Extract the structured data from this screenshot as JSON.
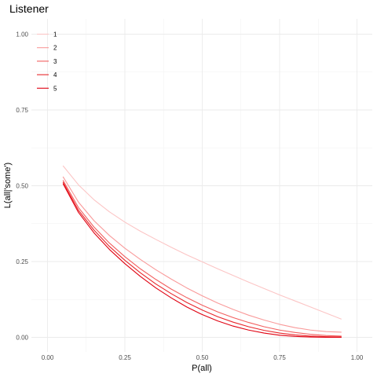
{
  "chart_data": {
    "type": "line",
    "title": "Listener",
    "xlabel": "P(all)",
    "ylabel": "L(all|'some')",
    "xlim": [
      0.0,
      1.0
    ],
    "ylim": [
      0.0,
      1.0
    ],
    "xticks": [
      0.0,
      0.25,
      0.5,
      0.75,
      1.0
    ],
    "xtick_labels": [
      "0.00",
      "0.25",
      "0.50",
      "0.75",
      "1.00"
    ],
    "yticks": [
      0.0,
      0.25,
      0.5,
      0.75,
      1.0
    ],
    "ytick_labels": [
      "0.00",
      "0.25",
      "0.50",
      "0.75",
      "1.00"
    ],
    "grid": true,
    "legend_position": "top-left",
    "x": [
      0.05,
      0.1,
      0.15,
      0.2,
      0.25,
      0.3,
      0.35,
      0.4,
      0.45,
      0.5,
      0.55,
      0.6,
      0.65,
      0.7,
      0.75,
      0.8,
      0.85,
      0.9,
      0.95
    ],
    "series": [
      {
        "name": "1",
        "color": "#fcc5c5",
        "values": [
          0.566,
          0.503,
          0.454,
          0.414,
          0.38,
          0.35,
          0.323,
          0.297,
          0.272,
          0.249,
          0.226,
          0.204,
          0.182,
          0.161,
          0.14,
          0.12,
          0.1,
          0.08,
          0.06
        ]
      },
      {
        "name": "2",
        "color": "#f99a9a",
        "values": [
          0.53,
          0.446,
          0.385,
          0.336,
          0.294,
          0.257,
          0.223,
          0.192,
          0.163,
          0.137,
          0.113,
          0.092,
          0.073,
          0.057,
          0.043,
          0.032,
          0.024,
          0.019,
          0.017
        ]
      },
      {
        "name": "3",
        "color": "#f25f5f",
        "values": [
          0.518,
          0.428,
          0.364,
          0.311,
          0.266,
          0.226,
          0.191,
          0.159,
          0.131,
          0.106,
          0.084,
          0.065,
          0.049,
          0.035,
          0.024,
          0.016,
          0.01,
          0.006,
          0.004
        ]
      },
      {
        "name": "4",
        "color": "#e8262b",
        "values": [
          0.512,
          0.419,
          0.354,
          0.3,
          0.254,
          0.213,
          0.176,
          0.144,
          0.115,
          0.09,
          0.068,
          0.05,
          0.035,
          0.023,
          0.014,
          0.008,
          0.004,
          0.002,
          0.001
        ]
      },
      {
        "name": "5",
        "color": "#e00010",
        "values": [
          0.507,
          0.412,
          0.345,
          0.29,
          0.243,
          0.201,
          0.163,
          0.13,
          0.1,
          0.075,
          0.054,
          0.037,
          0.024,
          0.014,
          0.007,
          0.003,
          0.001,
          0.0,
          0.0
        ]
      }
    ]
  }
}
